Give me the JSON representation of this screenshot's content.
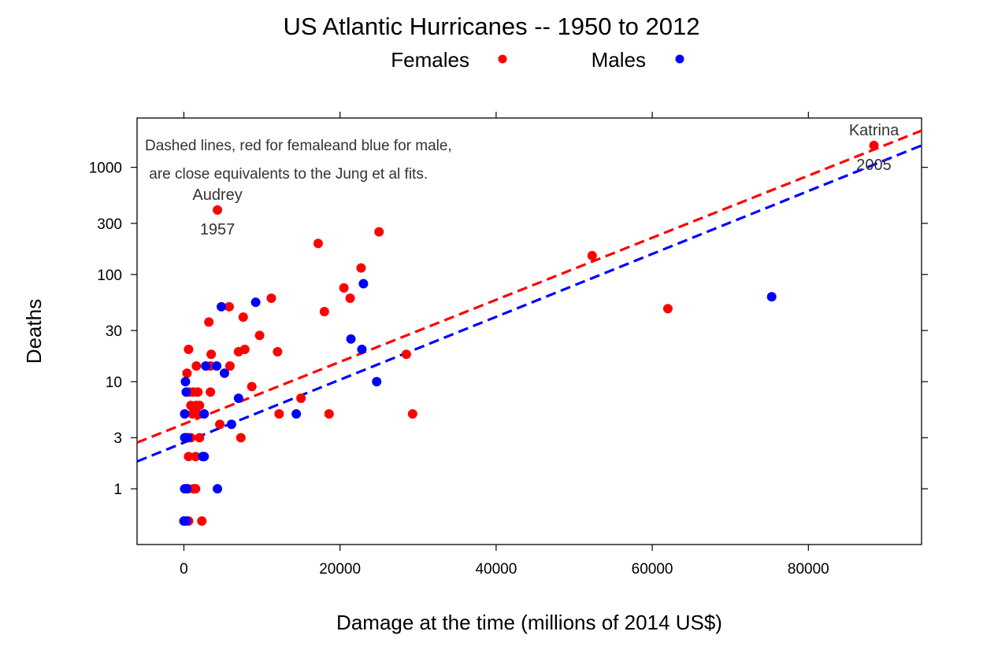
{
  "chart_data": {
    "type": "scatter",
    "title": "US Atlantic Hurricanes -- 1950 to 2012",
    "xlabel": "Damage at the time (millions of 2014 US$)",
    "ylabel": "Deaths",
    "xlim": [
      -6000,
      94500
    ],
    "ylim_log10": [
      -0.52,
      3.46
    ],
    "y_scale": "log",
    "grid": false,
    "x_ticks": [
      0,
      20000,
      40000,
      60000,
      80000
    ],
    "y_ticks": [
      1,
      3,
      10,
      30,
      100,
      300,
      1000
    ],
    "legend": {
      "placement": "top-center",
      "entries": [
        {
          "label": "Females",
          "color": "#ff0000"
        },
        {
          "label": "Males",
          "color": "#0000ff"
        }
      ]
    },
    "note_lines": [
      "Dashed lines, red for femaleand blue for male,",
      " are close equivalents to the Jung et al fits."
    ],
    "series": [
      {
        "name": "Females",
        "color": "#ff0000",
        "points": [
          [
            4300,
            400
          ],
          [
            88400,
            1600
          ],
          [
            25000,
            250
          ],
          [
            17200,
            195
          ],
          [
            22700,
            115
          ],
          [
            52300,
            150
          ],
          [
            20500,
            75
          ],
          [
            21300,
            60
          ],
          [
            11200,
            60
          ],
          [
            18000,
            45
          ],
          [
            62000,
            48
          ],
          [
            5800,
            50
          ],
          [
            7600,
            40
          ],
          [
            3200,
            36
          ],
          [
            9700,
            27
          ],
          [
            600,
            20
          ],
          [
            3500,
            18
          ],
          [
            7000,
            19
          ],
          [
            7800,
            20
          ],
          [
            12000,
            19
          ],
          [
            28500,
            18
          ],
          [
            1600,
            14
          ],
          [
            3400,
            14
          ],
          [
            5900,
            14
          ],
          [
            400,
            12
          ],
          [
            8700,
            9
          ],
          [
            700,
            8
          ],
          [
            1200,
            8
          ],
          [
            1800,
            8
          ],
          [
            3400,
            8
          ],
          [
            15000,
            7
          ],
          [
            900,
            6
          ],
          [
            1600,
            6
          ],
          [
            2000,
            6
          ],
          [
            1100,
            5
          ],
          [
            1700,
            5
          ],
          [
            12200,
            5
          ],
          [
            18600,
            5
          ],
          [
            29300,
            5
          ],
          [
            4600,
            4
          ],
          [
            200,
            3
          ],
          [
            900,
            3
          ],
          [
            2000,
            3
          ],
          [
            7300,
            3
          ],
          [
            600,
            2
          ],
          [
            1500,
            2
          ],
          [
            2500,
            2
          ],
          [
            500,
            1
          ],
          [
            1200,
            1
          ],
          [
            1500,
            1
          ],
          [
            600,
            0.5
          ],
          [
            2300,
            0.5
          ]
        ]
      },
      {
        "name": "Males",
        "color": "#0000ff",
        "points": [
          [
            75300,
            62
          ],
          [
            23000,
            82
          ],
          [
            9200,
            55
          ],
          [
            4800,
            50
          ],
          [
            21400,
            25
          ],
          [
            22800,
            20
          ],
          [
            2800,
            14
          ],
          [
            4200,
            14
          ],
          [
            5200,
            12
          ],
          [
            200,
            10
          ],
          [
            24700,
            10
          ],
          [
            300,
            8
          ],
          [
            7000,
            7
          ],
          [
            100,
            5
          ],
          [
            2600,
            5
          ],
          [
            14400,
            5
          ],
          [
            6100,
            4
          ],
          [
            100,
            3
          ],
          [
            500,
            3
          ],
          [
            2400,
            2
          ],
          [
            2600,
            2
          ],
          [
            100,
            1
          ],
          [
            400,
            1
          ],
          [
            4300,
            1
          ],
          [
            0,
            0.5
          ],
          [
            300,
            0.5
          ]
        ]
      }
    ],
    "fit_lines": [
      {
        "name": "Females",
        "color": "#ff0000",
        "x": [
          -6000,
          94500
        ],
        "y": [
          2.7,
          2200
        ]
      },
      {
        "name": "Males",
        "color": "#0000ff",
        "x": [
          -6000,
          94500
        ],
        "y": [
          1.8,
          1600
        ]
      }
    ],
    "annotations": [
      {
        "x": 4300,
        "y": 400,
        "label": "Audrey",
        "sub": "1957"
      },
      {
        "x": 88400,
        "y": 1600,
        "label": "Katrina",
        "sub": "2005"
      }
    ]
  }
}
